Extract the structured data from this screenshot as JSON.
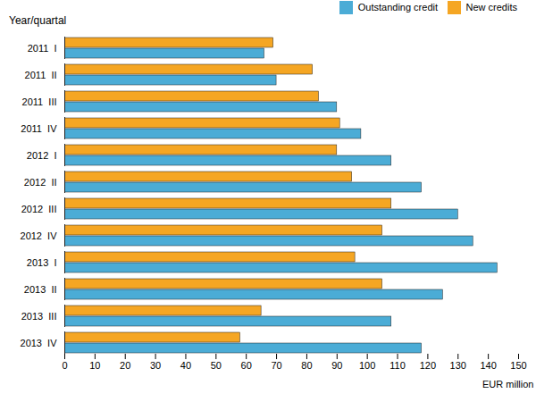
{
  "chart_data": {
    "type": "bar",
    "orientation": "horizontal",
    "categories": [
      "2011  I",
      "2011  II",
      "2011  III",
      "2011  IV",
      "2012  I",
      "2012  II",
      "2012  III",
      "2012  IV",
      "2013  I",
      "2013  II",
      "2013  III",
      "2013  IV"
    ],
    "series": [
      {
        "name": "Outstanding credit",
        "color": "#4BACD6",
        "values": [
          66,
          70,
          90,
          98,
          108,
          118,
          130,
          135,
          143,
          125,
          108,
          118
        ]
      },
      {
        "name": "New credits",
        "color": "#F5A623",
        "values": [
          69,
          82,
          84,
          91,
          90,
          95,
          108,
          105,
          96,
          105,
          65,
          58
        ]
      }
    ],
    "xlabel": "EUR million",
    "ylabel": "Year/quartal",
    "xlim": [
      0,
      150
    ],
    "xticks": [
      0,
      10,
      20,
      30,
      40,
      50,
      60,
      70,
      80,
      90,
      100,
      110,
      120,
      130,
      140,
      150
    ],
    "grid": false,
    "legend": "upper right"
  }
}
